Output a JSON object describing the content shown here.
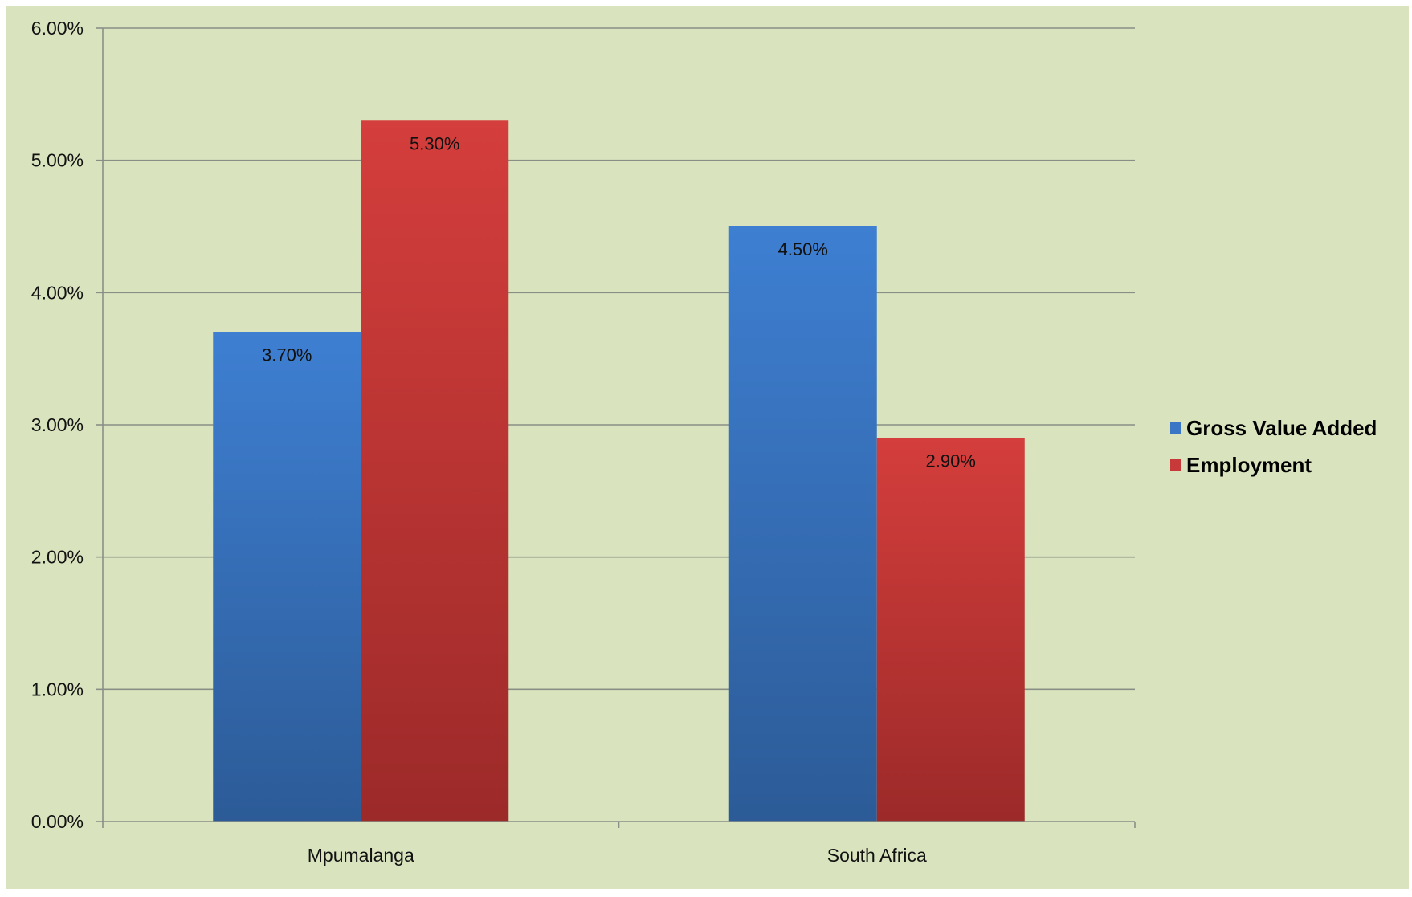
{
  "chart_data": {
    "type": "bar",
    "title": "",
    "xlabel": "",
    "ylabel": "",
    "categories": [
      "Mpumalanga",
      "South Africa"
    ],
    "series": [
      {
        "name": "Gross Value Added",
        "values": [
          3.7,
          4.5
        ],
        "labels": [
          "3.70%",
          "4.50%"
        ],
        "color": "#3a76c6"
      },
      {
        "name": "Employment",
        "values": [
          5.3,
          2.9
        ],
        "labels": [
          "5.30%",
          "2.90%"
        ],
        "color": "#c83a39"
      }
    ],
    "ylim": [
      0,
      6
    ],
    "yticks": [
      "0.00%",
      "1.00%",
      "2.00%",
      "3.00%",
      "4.00%",
      "5.00%",
      "6.00%"
    ],
    "grid": true,
    "legend_position": "right",
    "background_color": "#d9e4bf"
  }
}
